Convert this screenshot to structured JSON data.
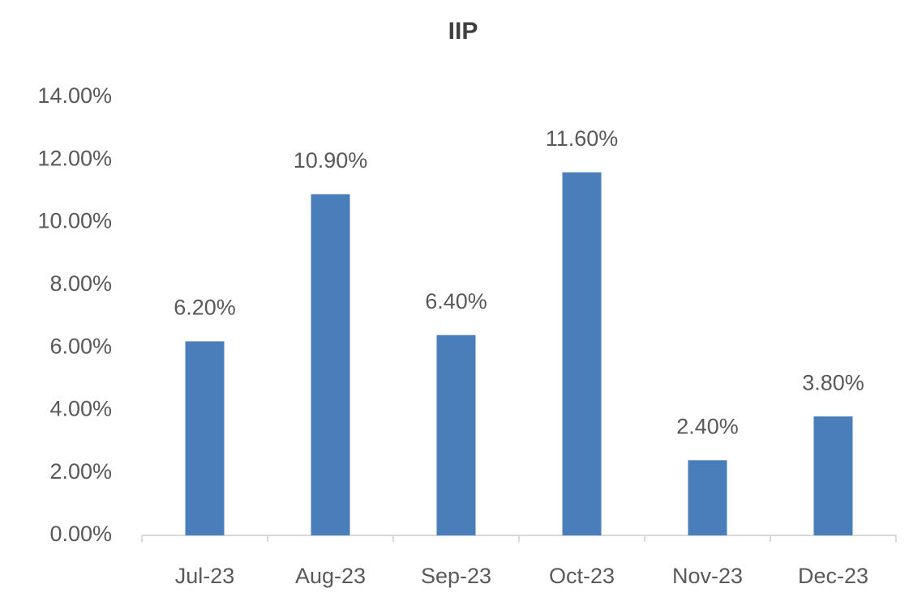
{
  "chart_data": {
    "type": "bar",
    "title": "IIP",
    "categories": [
      "Jul-23",
      "Aug-23",
      "Sep-23",
      "Oct-23",
      "Nov-23",
      "Dec-23"
    ],
    "values": [
      6.2,
      10.9,
      6.4,
      11.6,
      2.4,
      3.8
    ],
    "value_labels": [
      "6.20%",
      "10.90%",
      "6.40%",
      "11.60%",
      "2.40%",
      "3.80%"
    ],
    "color": "#4a7ebb",
    "ylim": [
      0,
      14
    ],
    "yticks": [
      {
        "value": 0,
        "label": "0.00%"
      },
      {
        "value": 2,
        "label": "2.00%"
      },
      {
        "value": 4,
        "label": "4.00%"
      },
      {
        "value": 6,
        "label": "6.00%"
      },
      {
        "value": 8,
        "label": "8.00%"
      },
      {
        "value": 10,
        "label": "10.00%"
      },
      {
        "value": 12,
        "label": "12.00%"
      },
      {
        "value": 14,
        "label": "14.00%"
      }
    ],
    "grid": false
  }
}
